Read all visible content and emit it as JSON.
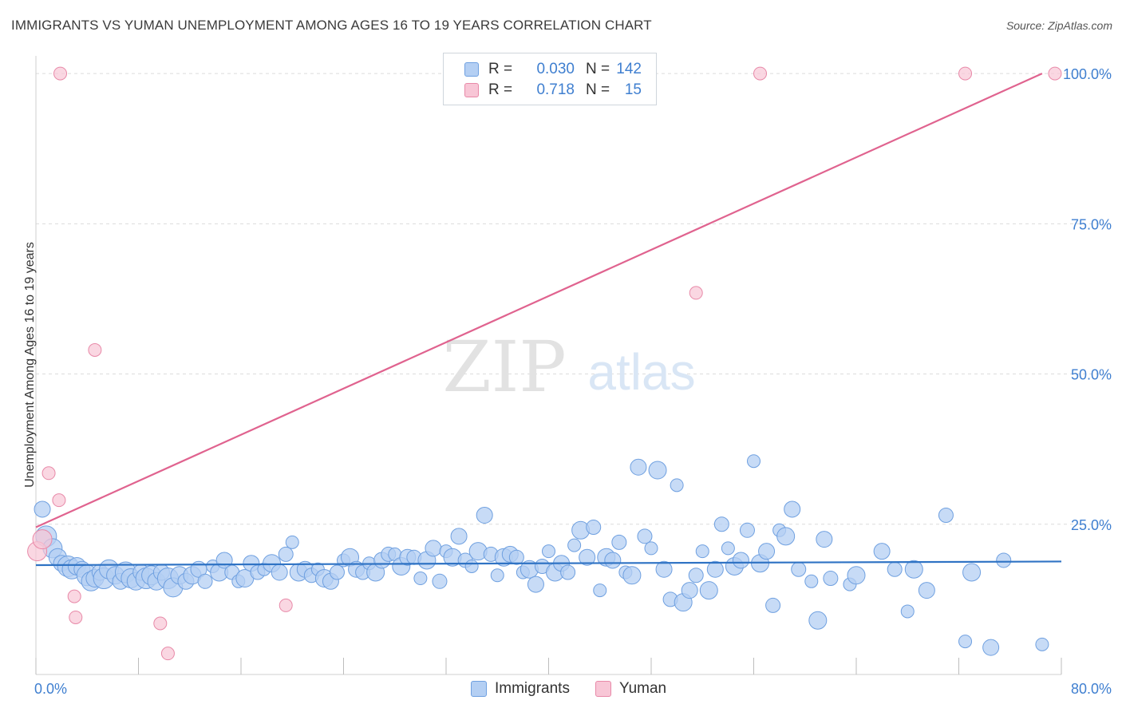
{
  "header": {
    "title": "IMMIGRANTS VS YUMAN UNEMPLOYMENT AMONG AGES 16 TO 19 YEARS CORRELATION CHART",
    "source": "Source: ZipAtlas.com"
  },
  "watermark": {
    "zip": "ZIP",
    "atlas": "atlas"
  },
  "legend": {
    "rows": [
      {
        "r_label": "R =",
        "r_value": "0.030",
        "n_label": "N =",
        "n_value": "142",
        "fill": "#b4cff3",
        "stroke": "#6fa0e0"
      },
      {
        "r_label": "R =",
        "r_value": "0.718",
        "n_label": "N =",
        "n_value": "15",
        "fill": "#f8c6d6",
        "stroke": "#e889a8"
      }
    ]
  },
  "bottom_legend": [
    {
      "label": "Immigrants",
      "fill": "#b4cff3",
      "stroke": "#6fa0e0"
    },
    {
      "label": "Yuman",
      "fill": "#f8c6d6",
      "stroke": "#e889a8"
    }
  ],
  "chart_data": {
    "type": "scatter",
    "title": "IMMIGRANTS VS YUMAN UNEMPLOYMENT AMONG AGES 16 TO 19 YEARS CORRELATION CHART",
    "xlabel": "",
    "ylabel": "Unemployment Among Ages 16 to 19 years",
    "xlim": [
      0,
      80
    ],
    "ylim": [
      0,
      104
    ],
    "x_tick_labels": [
      "0.0%",
      "80.0%"
    ],
    "y_ticks": [
      25,
      50,
      75,
      100
    ],
    "y_tick_labels": [
      "25.0%",
      "50.0%",
      "75.0%",
      "100.0%"
    ],
    "grid": true,
    "colors": {
      "immigrants_fill": "#b4cff3",
      "immigrants_stroke": "#6fa0e0",
      "immigrants_line": "#2f73c4",
      "yuman_fill": "#f8c6d6",
      "yuman_stroke": "#e889a8",
      "yuman_line": "#e0638f",
      "tick_label": "#3f7fd0"
    },
    "series": [
      {
        "name": "Immigrants",
        "trend": [
          [
            0,
            18.2
          ],
          [
            80,
            18.8
          ]
        ],
        "points": [
          [
            0.5,
            27.5
          ],
          [
            0.8,
            23.0
          ],
          [
            1.3,
            21.0
          ],
          [
            1.7,
            19.5
          ],
          [
            2.0,
            18.5
          ],
          [
            2.5,
            18.0
          ],
          [
            2.8,
            17.5
          ],
          [
            3.2,
            18.0
          ],
          [
            3.6,
            17.5
          ],
          [
            4.0,
            16.5
          ],
          [
            4.3,
            15.5
          ],
          [
            4.6,
            16.0
          ],
          [
            5.0,
            17.0
          ],
          [
            5.3,
            16.0
          ],
          [
            5.7,
            17.5
          ],
          [
            6.2,
            16.5
          ],
          [
            6.6,
            15.5
          ],
          [
            7.0,
            17.0
          ],
          [
            7.4,
            16.0
          ],
          [
            7.8,
            15.5
          ],
          [
            8.2,
            17.0
          ],
          [
            8.6,
            16.0
          ],
          [
            9.0,
            16.5
          ],
          [
            9.4,
            15.5
          ],
          [
            9.8,
            17.0
          ],
          [
            10.3,
            16.0
          ],
          [
            10.7,
            14.5
          ],
          [
            11.2,
            16.5
          ],
          [
            11.7,
            15.5
          ],
          [
            12.2,
            16.5
          ],
          [
            12.7,
            17.5
          ],
          [
            13.2,
            15.5
          ],
          [
            13.8,
            18.0
          ],
          [
            14.3,
            17.0
          ],
          [
            14.7,
            19.0
          ],
          [
            15.3,
            17.0
          ],
          [
            15.8,
            15.5
          ],
          [
            16.3,
            16.0
          ],
          [
            16.8,
            18.5
          ],
          [
            17.3,
            17.0
          ],
          [
            17.8,
            17.5
          ],
          [
            18.4,
            18.5
          ],
          [
            19.0,
            17.0
          ],
          [
            19.5,
            20.0
          ],
          [
            20.0,
            22.0
          ],
          [
            20.5,
            17.0
          ],
          [
            21.0,
            17.5
          ],
          [
            21.5,
            16.5
          ],
          [
            22.0,
            17.5
          ],
          [
            22.5,
            16.0
          ],
          [
            23.0,
            15.5
          ],
          [
            23.5,
            17.0
          ],
          [
            24.0,
            19.0
          ],
          [
            24.5,
            19.5
          ],
          [
            25.0,
            17.5
          ],
          [
            25.5,
            17.0
          ],
          [
            26.0,
            18.5
          ],
          [
            26.5,
            17.0
          ],
          [
            27.0,
            19.0
          ],
          [
            27.5,
            20.0
          ],
          [
            28.0,
            20.0
          ],
          [
            28.5,
            18.0
          ],
          [
            29.0,
            19.5
          ],
          [
            29.5,
            19.5
          ],
          [
            30.0,
            16.0
          ],
          [
            30.5,
            19.0
          ],
          [
            31.0,
            21.0
          ],
          [
            31.5,
            15.5
          ],
          [
            32.0,
            20.5
          ],
          [
            32.5,
            19.5
          ],
          [
            33.0,
            23.0
          ],
          [
            33.5,
            19.0
          ],
          [
            34.0,
            18.0
          ],
          [
            34.5,
            20.5
          ],
          [
            35.0,
            26.5
          ],
          [
            35.5,
            20.0
          ],
          [
            36.0,
            16.5
          ],
          [
            36.5,
            19.5
          ],
          [
            37.0,
            20.0
          ],
          [
            37.5,
            19.5
          ],
          [
            38.0,
            17.0
          ],
          [
            38.5,
            17.5
          ],
          [
            39.0,
            15.0
          ],
          [
            39.5,
            18.0
          ],
          [
            40.0,
            20.5
          ],
          [
            40.5,
            17.0
          ],
          [
            41.0,
            18.5
          ],
          [
            41.5,
            17.0
          ],
          [
            42.0,
            21.5
          ],
          [
            42.5,
            24.0
          ],
          [
            43.0,
            19.5
          ],
          [
            43.5,
            24.5
          ],
          [
            44.0,
            14.0
          ],
          [
            44.5,
            19.5
          ],
          [
            45.0,
            19.0
          ],
          [
            45.5,
            22.0
          ],
          [
            46.0,
            17.0
          ],
          [
            46.5,
            16.5
          ],
          [
            47.0,
            34.5
          ],
          [
            47.5,
            23.0
          ],
          [
            48.0,
            21.0
          ],
          [
            48.5,
            34.0
          ],
          [
            49.0,
            17.5
          ],
          [
            49.5,
            12.5
          ],
          [
            50.0,
            31.5
          ],
          [
            50.5,
            12.0
          ],
          [
            51.0,
            14.0
          ],
          [
            51.5,
            16.5
          ],
          [
            52.0,
            20.5
          ],
          [
            52.5,
            14.0
          ],
          [
            53.0,
            17.5
          ],
          [
            53.5,
            25.0
          ],
          [
            54.0,
            21.0
          ],
          [
            54.5,
            18.0
          ],
          [
            55.0,
            19.0
          ],
          [
            55.5,
            24.0
          ],
          [
            56.0,
            35.5
          ],
          [
            56.5,
            18.5
          ],
          [
            57.0,
            20.5
          ],
          [
            57.5,
            11.5
          ],
          [
            58.0,
            24.0
          ],
          [
            58.5,
            23.0
          ],
          [
            59.0,
            27.5
          ],
          [
            59.5,
            17.5
          ],
          [
            60.5,
            15.5
          ],
          [
            61.0,
            9.0
          ],
          [
            61.5,
            22.5
          ],
          [
            62.0,
            16.0
          ],
          [
            63.5,
            15.0
          ],
          [
            64.0,
            16.5
          ],
          [
            66.0,
            20.5
          ],
          [
            67.0,
            17.5
          ],
          [
            68.0,
            10.5
          ],
          [
            68.5,
            17.5
          ],
          [
            69.5,
            14.0
          ],
          [
            71.0,
            26.5
          ],
          [
            72.5,
            5.5
          ],
          [
            73.0,
            17.0
          ],
          [
            74.5,
            4.5
          ],
          [
            75.5,
            19.0
          ],
          [
            78.5,
            5.0
          ]
        ]
      },
      {
        "name": "Yuman",
        "trend": [
          [
            0,
            24.5
          ],
          [
            78.5,
            100.0
          ]
        ],
        "points": [
          [
            0.1,
            20.5
          ],
          [
            0.5,
            22.5
          ],
          [
            1.0,
            33.5
          ],
          [
            1.8,
            29.0
          ],
          [
            1.9,
            100.0
          ],
          [
            3.0,
            13.0
          ],
          [
            3.1,
            9.5
          ],
          [
            4.6,
            54.0
          ],
          [
            9.7,
            8.5
          ],
          [
            10.3,
            3.5
          ],
          [
            19.5,
            11.5
          ],
          [
            51.5,
            63.5
          ],
          [
            56.5,
            100.0
          ],
          [
            72.5,
            100.0
          ],
          [
            79.5,
            100.0
          ]
        ]
      }
    ]
  }
}
